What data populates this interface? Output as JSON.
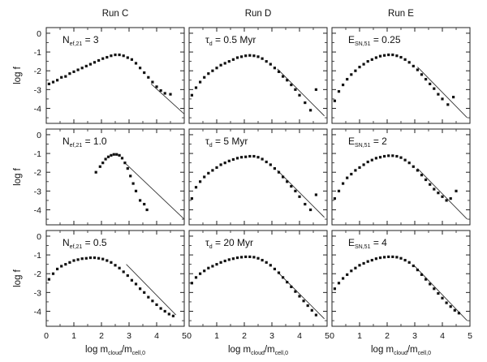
{
  "chart_data": {
    "type": "scatter",
    "layout": "3x3 grid of panels",
    "column_titles": [
      "Run C",
      "Run D",
      "Run E"
    ],
    "ylabel": "log f",
    "xlabel_parts": {
      "pre": "log  m",
      "sub1": "cloud",
      "mid": "/m",
      "sub2": "cell,0"
    },
    "xlim": [
      0,
      5
    ],
    "ylim": [
      -4.8,
      0.3
    ],
    "xticks": [
      "0",
      "1",
      "2",
      "3",
      "4",
      "5"
    ],
    "yticks": [
      "0",
      "-1",
      "-2",
      "-3",
      "-4"
    ],
    "panels": [
      {
        "run": "Run C",
        "label": {
          "sym": "N",
          "sub": "ef,21",
          "val": " =  3"
        },
        "ref_line": [
          [
            3.8,
            -2.7
          ],
          [
            5.0,
            -4.3
          ]
        ],
        "points": [
          [
            0.1,
            -2.7
          ],
          [
            0.25,
            -2.6
          ],
          [
            0.4,
            -2.5
          ],
          [
            0.55,
            -2.35
          ],
          [
            0.7,
            -2.3
          ],
          [
            0.85,
            -2.15
          ],
          [
            1.0,
            -2.05
          ],
          [
            1.15,
            -1.95
          ],
          [
            1.3,
            -1.85
          ],
          [
            1.45,
            -1.75
          ],
          [
            1.6,
            -1.65
          ],
          [
            1.75,
            -1.55
          ],
          [
            1.9,
            -1.45
          ],
          [
            2.05,
            -1.35
          ],
          [
            2.2,
            -1.28
          ],
          [
            2.35,
            -1.2
          ],
          [
            2.5,
            -1.15
          ],
          [
            2.65,
            -1.15
          ],
          [
            2.8,
            -1.2
          ],
          [
            2.95,
            -1.3
          ],
          [
            3.1,
            -1.4
          ],
          [
            3.25,
            -1.6
          ],
          [
            3.4,
            -1.85
          ],
          [
            3.55,
            -2.1
          ],
          [
            3.7,
            -2.35
          ],
          [
            3.85,
            -2.6
          ],
          [
            4.0,
            -2.85
          ],
          [
            4.15,
            -3.05
          ],
          [
            4.3,
            -3.2
          ],
          [
            4.5,
            -3.25
          ]
        ]
      },
      {
        "run": "Run D",
        "label": {
          "sym": "τ",
          "sub": "d",
          "val": " =  0.5  Myr"
        },
        "ref_line": [
          [
            3.2,
            -1.9
          ],
          [
            4.9,
            -4.4
          ]
        ],
        "points": [
          [
            0.1,
            -3.3
          ],
          [
            0.25,
            -2.9
          ],
          [
            0.4,
            -2.6
          ],
          [
            0.55,
            -2.35
          ],
          [
            0.7,
            -2.15
          ],
          [
            0.85,
            -2.0
          ],
          [
            1.0,
            -1.85
          ],
          [
            1.15,
            -1.7
          ],
          [
            1.3,
            -1.6
          ],
          [
            1.45,
            -1.5
          ],
          [
            1.6,
            -1.4
          ],
          [
            1.75,
            -1.3
          ],
          [
            1.9,
            -1.25
          ],
          [
            2.05,
            -1.2
          ],
          [
            2.2,
            -1.18
          ],
          [
            2.35,
            -1.2
          ],
          [
            2.5,
            -1.25
          ],
          [
            2.65,
            -1.35
          ],
          [
            2.8,
            -1.5
          ],
          [
            2.95,
            -1.65
          ],
          [
            3.1,
            -1.85
          ],
          [
            3.25,
            -2.05
          ],
          [
            3.4,
            -2.3
          ],
          [
            3.55,
            -2.5
          ],
          [
            3.7,
            -2.75
          ],
          [
            3.85,
            -3.0
          ],
          [
            4.0,
            -3.3
          ],
          [
            4.2,
            -3.7
          ],
          [
            4.4,
            -4.1
          ],
          [
            4.6,
            -3.0
          ]
        ]
      },
      {
        "run": "Run E",
        "label": {
          "sym": "E",
          "sub": "SN,51",
          "val": " =  0.25"
        },
        "ref_line": [
          [
            3.1,
            -1.8
          ],
          [
            4.9,
            -4.5
          ]
        ],
        "points": [
          [
            0.1,
            -3.6
          ],
          [
            0.25,
            -3.1
          ],
          [
            0.4,
            -2.75
          ],
          [
            0.55,
            -2.45
          ],
          [
            0.7,
            -2.2
          ],
          [
            0.85,
            -2.0
          ],
          [
            1.0,
            -1.8
          ],
          [
            1.15,
            -1.65
          ],
          [
            1.3,
            -1.5
          ],
          [
            1.45,
            -1.4
          ],
          [
            1.6,
            -1.3
          ],
          [
            1.75,
            -1.22
          ],
          [
            1.9,
            -1.18
          ],
          [
            2.05,
            -1.15
          ],
          [
            2.2,
            -1.15
          ],
          [
            2.35,
            -1.2
          ],
          [
            2.5,
            -1.28
          ],
          [
            2.65,
            -1.4
          ],
          [
            2.8,
            -1.55
          ],
          [
            2.95,
            -1.75
          ],
          [
            3.1,
            -1.95
          ],
          [
            3.25,
            -2.2
          ],
          [
            3.4,
            -2.45
          ],
          [
            3.55,
            -2.7
          ],
          [
            3.7,
            -2.95
          ],
          [
            3.85,
            -3.25
          ],
          [
            4.0,
            -3.5
          ],
          [
            4.2,
            -3.8
          ],
          [
            4.4,
            -3.4
          ]
        ]
      },
      {
        "run": "Run C",
        "label": {
          "sym": "N",
          "sub": "ef,21",
          "val": " =  1.0"
        },
        "ref_line": [
          [
            2.85,
            -1.5
          ],
          [
            5.0,
            -4.5
          ]
        ],
        "points": [
          [
            1.8,
            -2.0
          ],
          [
            1.95,
            -1.7
          ],
          [
            2.05,
            -1.5
          ],
          [
            2.15,
            -1.3
          ],
          [
            2.25,
            -1.18
          ],
          [
            2.35,
            -1.1
          ],
          [
            2.45,
            -1.05
          ],
          [
            2.55,
            -1.05
          ],
          [
            2.65,
            -1.1
          ],
          [
            2.75,
            -1.25
          ],
          [
            2.85,
            -1.5
          ],
          [
            2.95,
            -1.8
          ],
          [
            3.05,
            -2.2
          ],
          [
            3.15,
            -2.6
          ],
          [
            3.25,
            -3.0
          ],
          [
            3.4,
            -3.5
          ],
          [
            3.55,
            -3.7
          ],
          [
            3.65,
            -4.0
          ]
        ]
      },
      {
        "run": "Run D",
        "label": {
          "sym": "τ",
          "sub": "d",
          "val": " =  5  Myr"
        },
        "ref_line": [
          [
            3.2,
            -1.9
          ],
          [
            4.9,
            -4.4
          ]
        ],
        "points": [
          [
            0.1,
            -3.4
          ],
          [
            0.25,
            -2.8
          ],
          [
            0.4,
            -2.5
          ],
          [
            0.55,
            -2.25
          ],
          [
            0.7,
            -2.05
          ],
          [
            0.85,
            -1.9
          ],
          [
            1.0,
            -1.75
          ],
          [
            1.15,
            -1.6
          ],
          [
            1.3,
            -1.5
          ],
          [
            1.45,
            -1.4
          ],
          [
            1.6,
            -1.32
          ],
          [
            1.75,
            -1.25
          ],
          [
            1.9,
            -1.2
          ],
          [
            2.05,
            -1.18
          ],
          [
            2.2,
            -1.15
          ],
          [
            2.35,
            -1.15
          ],
          [
            2.5,
            -1.2
          ],
          [
            2.65,
            -1.3
          ],
          [
            2.8,
            -1.45
          ],
          [
            2.95,
            -1.6
          ],
          [
            3.1,
            -1.8
          ],
          [
            3.25,
            -2.0
          ],
          [
            3.4,
            -2.25
          ],
          [
            3.55,
            -2.5
          ],
          [
            3.7,
            -2.75
          ],
          [
            3.85,
            -3.0
          ],
          [
            4.0,
            -3.3
          ],
          [
            4.2,
            -3.7
          ],
          [
            4.4,
            -4.0
          ],
          [
            4.6,
            -3.2
          ]
        ]
      },
      {
        "run": "Run E",
        "label": {
          "sym": "E",
          "sub": "SN,51",
          "val": " =  2"
        },
        "ref_line": [
          [
            3.1,
            -1.8
          ],
          [
            4.9,
            -4.5
          ]
        ],
        "points": [
          [
            0.1,
            -3.4
          ],
          [
            0.25,
            -3.0
          ],
          [
            0.4,
            -2.6
          ],
          [
            0.55,
            -2.3
          ],
          [
            0.7,
            -2.1
          ],
          [
            0.85,
            -1.9
          ],
          [
            1.0,
            -1.75
          ],
          [
            1.15,
            -1.6
          ],
          [
            1.3,
            -1.45
          ],
          [
            1.45,
            -1.35
          ],
          [
            1.6,
            -1.25
          ],
          [
            1.75,
            -1.2
          ],
          [
            1.9,
            -1.15
          ],
          [
            2.05,
            -1.12
          ],
          [
            2.2,
            -1.12
          ],
          [
            2.35,
            -1.15
          ],
          [
            2.5,
            -1.22
          ],
          [
            2.65,
            -1.35
          ],
          [
            2.8,
            -1.5
          ],
          [
            2.95,
            -1.7
          ],
          [
            3.1,
            -1.9
          ],
          [
            3.25,
            -2.15
          ],
          [
            3.4,
            -2.4
          ],
          [
            3.55,
            -2.65
          ],
          [
            3.7,
            -2.9
          ],
          [
            3.85,
            -3.1
          ],
          [
            4.0,
            -3.3
          ],
          [
            4.15,
            -3.5
          ],
          [
            4.3,
            -3.4
          ],
          [
            4.5,
            -3.0
          ]
        ]
      },
      {
        "run": "Run C",
        "label": {
          "sym": "N",
          "sub": "ef,21",
          "val": " =  0.5"
        },
        "ref_line": [
          [
            2.9,
            -1.5
          ],
          [
            4.7,
            -4.2
          ]
        ],
        "points": [
          [
            0.1,
            -2.3
          ],
          [
            0.25,
            -2.0
          ],
          [
            0.4,
            -1.75
          ],
          [
            0.55,
            -1.6
          ],
          [
            0.7,
            -1.5
          ],
          [
            0.85,
            -1.4
          ],
          [
            1.0,
            -1.3
          ],
          [
            1.15,
            -1.25
          ],
          [
            1.3,
            -1.2
          ],
          [
            1.45,
            -1.18
          ],
          [
            1.6,
            -1.15
          ],
          [
            1.75,
            -1.15
          ],
          [
            1.9,
            -1.18
          ],
          [
            2.05,
            -1.22
          ],
          [
            2.2,
            -1.3
          ],
          [
            2.35,
            -1.4
          ],
          [
            2.5,
            -1.55
          ],
          [
            2.65,
            -1.7
          ],
          [
            2.8,
            -1.9
          ],
          [
            2.95,
            -2.1
          ],
          [
            3.1,
            -2.35
          ],
          [
            3.25,
            -2.55
          ],
          [
            3.4,
            -2.8
          ],
          [
            3.55,
            -3.0
          ],
          [
            3.7,
            -3.25
          ],
          [
            3.85,
            -3.45
          ],
          [
            4.0,
            -3.65
          ],
          [
            4.15,
            -3.85
          ],
          [
            4.3,
            -4.0
          ],
          [
            4.45,
            -4.15
          ],
          [
            4.6,
            -4.25
          ]
        ]
      },
      {
        "run": "Run D",
        "label": {
          "sym": "τ",
          "sub": "d",
          "val": " =  20  Myr"
        },
        "ref_line": [
          [
            3.2,
            -1.9
          ],
          [
            4.9,
            -4.4
          ]
        ],
        "points": [
          [
            0.1,
            -2.5
          ],
          [
            0.25,
            -2.2
          ],
          [
            0.4,
            -2.0
          ],
          [
            0.55,
            -1.85
          ],
          [
            0.7,
            -1.7
          ],
          [
            0.85,
            -1.6
          ],
          [
            1.0,
            -1.5
          ],
          [
            1.15,
            -1.4
          ],
          [
            1.3,
            -1.32
          ],
          [
            1.45,
            -1.25
          ],
          [
            1.6,
            -1.2
          ],
          [
            1.75,
            -1.15
          ],
          [
            1.9,
            -1.12
          ],
          [
            2.05,
            -1.1
          ],
          [
            2.2,
            -1.1
          ],
          [
            2.35,
            -1.12
          ],
          [
            2.5,
            -1.18
          ],
          [
            2.65,
            -1.28
          ],
          [
            2.8,
            -1.4
          ],
          [
            2.95,
            -1.55
          ],
          [
            3.1,
            -1.75
          ],
          [
            3.25,
            -1.95
          ],
          [
            3.4,
            -2.2
          ],
          [
            3.55,
            -2.45
          ],
          [
            3.7,
            -2.7
          ],
          [
            3.85,
            -2.95
          ],
          [
            4.0,
            -3.2
          ],
          [
            4.15,
            -3.45
          ],
          [
            4.3,
            -3.7
          ],
          [
            4.45,
            -3.95
          ],
          [
            4.6,
            -4.2
          ]
        ]
      },
      {
        "run": "Run E",
        "label": {
          "sym": "E",
          "sub": "SN,51",
          "val": " =  4"
        },
        "ref_line": [
          [
            3.0,
            -1.6
          ],
          [
            4.9,
            -4.5
          ]
        ],
        "points": [
          [
            0.1,
            -2.8
          ],
          [
            0.25,
            -2.5
          ],
          [
            0.4,
            -2.25
          ],
          [
            0.55,
            -2.05
          ],
          [
            0.7,
            -1.85
          ],
          [
            0.85,
            -1.7
          ],
          [
            1.0,
            -1.55
          ],
          [
            1.15,
            -1.45
          ],
          [
            1.3,
            -1.35
          ],
          [
            1.45,
            -1.28
          ],
          [
            1.6,
            -1.2
          ],
          [
            1.75,
            -1.15
          ],
          [
            1.9,
            -1.12
          ],
          [
            2.05,
            -1.1
          ],
          [
            2.2,
            -1.1
          ],
          [
            2.35,
            -1.12
          ],
          [
            2.5,
            -1.18
          ],
          [
            2.65,
            -1.28
          ],
          [
            2.8,
            -1.4
          ],
          [
            2.95,
            -1.58
          ],
          [
            3.1,
            -1.8
          ],
          [
            3.25,
            -2.05
          ],
          [
            3.4,
            -2.3
          ],
          [
            3.55,
            -2.55
          ],
          [
            3.7,
            -2.8
          ],
          [
            3.85,
            -3.05
          ],
          [
            4.0,
            -3.3
          ],
          [
            4.15,
            -3.55
          ],
          [
            4.3,
            -3.75
          ],
          [
            4.45,
            -3.95
          ],
          [
            4.6,
            -4.1
          ]
        ]
      }
    ]
  }
}
